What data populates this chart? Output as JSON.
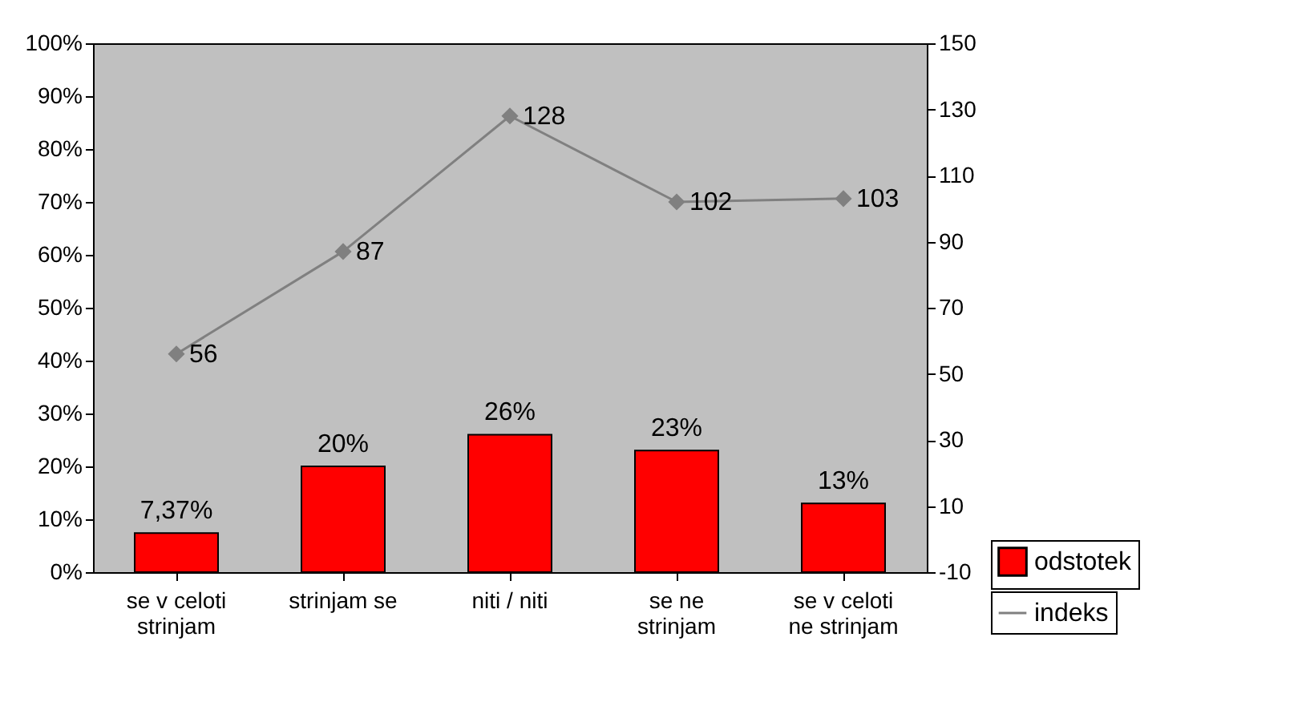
{
  "chart_data": {
    "type": "bar",
    "categories": [
      "se v celoti strinjam",
      "strinjam se",
      "niti / niti",
      "se ne strinjam",
      "se v celoti ne strinjam"
    ],
    "series": [
      {
        "name": "odstotek",
        "color": "#ff0000",
        "values": [
          7.37,
          20,
          26,
          23,
          13
        ],
        "value_labels": [
          "7,37%",
          "20%",
          "26%",
          "23%",
          "13%"
        ]
      },
      {
        "name": "indeks",
        "type": "line",
        "axis": "y2",
        "color": "#808080",
        "marker": "diamond",
        "values": [
          56,
          87,
          128,
          102,
          103
        ],
        "value_labels": [
          "56",
          "87",
          "128",
          "102",
          "103"
        ]
      }
    ],
    "ylim": [
      0,
      100
    ],
    "yticks": [
      {
        "value": 0,
        "label": "0%"
      },
      {
        "value": 10,
        "label": "10%"
      },
      {
        "value": 20,
        "label": "20%"
      },
      {
        "value": 30,
        "label": "30%"
      },
      {
        "value": 40,
        "label": "40%"
      },
      {
        "value": 50,
        "label": "50%"
      },
      {
        "value": 60,
        "label": "60%"
      },
      {
        "value": 70,
        "label": "70%"
      },
      {
        "value": 80,
        "label": "80%"
      },
      {
        "value": 90,
        "label": "90%"
      },
      {
        "value": 100,
        "label": "100%"
      }
    ],
    "y2lim": [
      -10,
      150
    ],
    "y2ticks": [
      -10,
      10,
      30,
      50,
      70,
      90,
      110,
      130,
      150
    ],
    "grid": false,
    "legend": "bottom right"
  }
}
